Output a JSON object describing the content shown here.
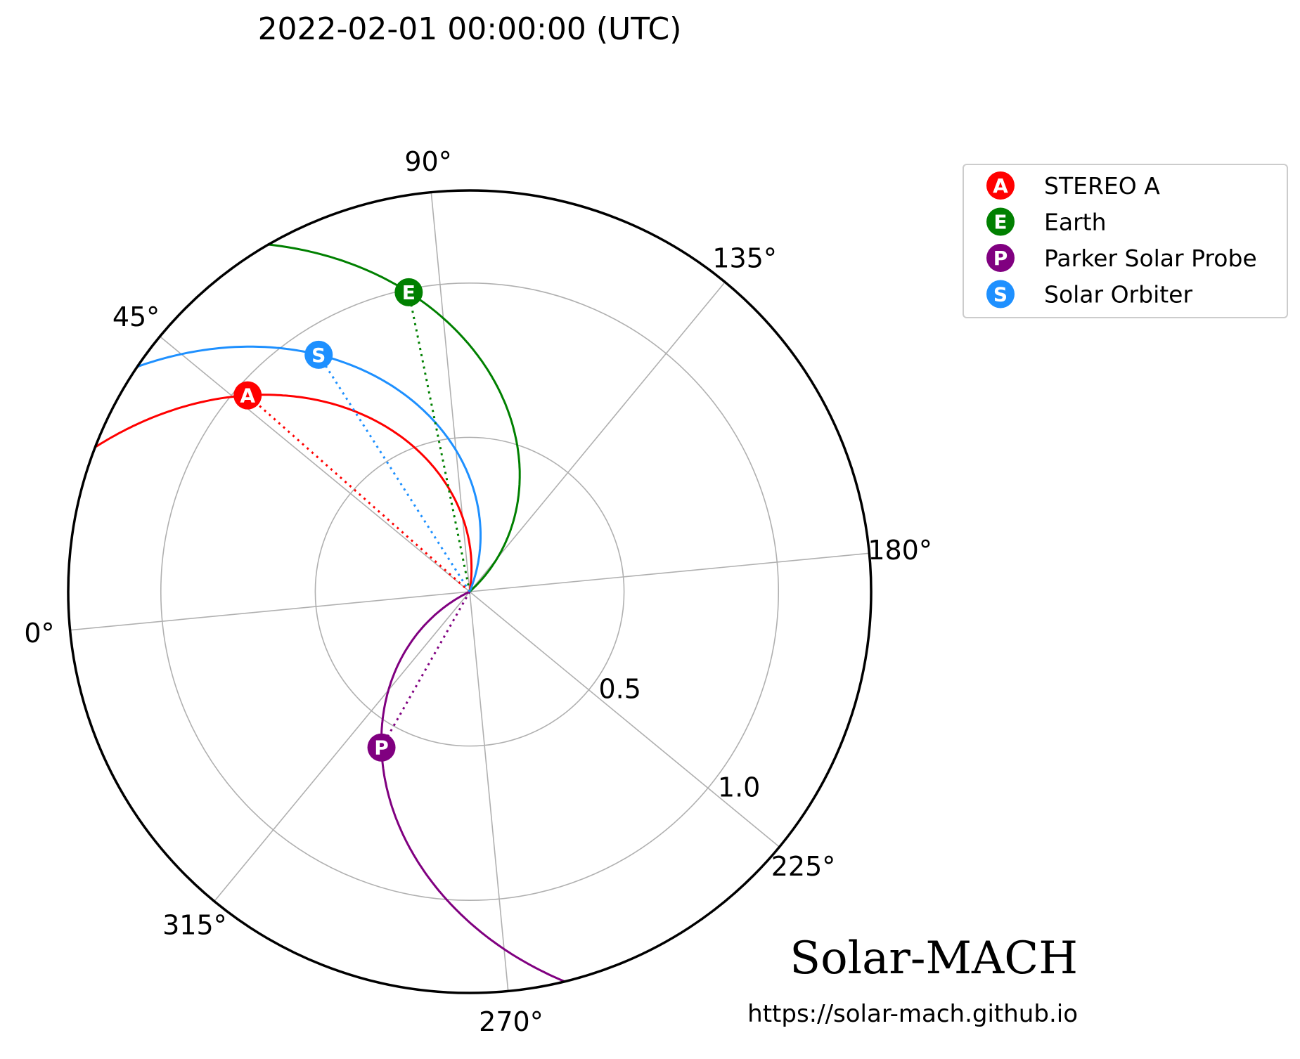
{
  "title": "2022-02-01 00:00:00 (UTC)",
  "brand": "Solar-MACH",
  "url": "https://solar-mach.github.io",
  "colors": {
    "STEREO A": "#ff0000",
    "Earth": "#008000",
    "Parker Solar Probe": "#800080",
    "Solar Orbiter": "#1e90ff",
    "grid": "#b0b0b0",
    "frame": "#000000"
  },
  "chart_data": {
    "type": "polar",
    "title": "2022-02-01 00:00:00 (UTC)",
    "theta_ticks": [
      {
        "deg": 0,
        "label": "0°"
      },
      {
        "deg": 45,
        "label": "45°"
      },
      {
        "deg": 90,
        "label": "90°"
      },
      {
        "deg": 135,
        "label": "135°"
      },
      {
        "deg": 180,
        "label": "180°"
      },
      {
        "deg": 225,
        "label": "225°"
      },
      {
        "deg": 270,
        "label": "270°"
      },
      {
        "deg": 315,
        "label": "315°"
      }
    ],
    "r_ticks": [
      {
        "value": 0.5,
        "label": "0.5"
      },
      {
        "value": 1.0,
        "label": "1.0"
      }
    ],
    "rlim": [
      0,
      1.3
    ],
    "grid": true,
    "legend_position": "top-right",
    "bodies": [
      {
        "name": "STEREO A",
        "letter": "A",
        "theta_deg": 47,
        "r": 0.96,
        "color": "#ff0000"
      },
      {
        "name": "Earth",
        "letter": "E",
        "theta_deg": 84,
        "r": 0.99,
        "color": "#008000"
      },
      {
        "name": "Parker Solar Probe",
        "letter": "P",
        "theta_deg": 305,
        "r": 0.58,
        "color": "#800080"
      },
      {
        "name": "Solar Orbiter",
        "letter": "S",
        "theta_deg": 63,
        "r": 0.91,
        "color": "#1e90ff"
      }
    ]
  }
}
